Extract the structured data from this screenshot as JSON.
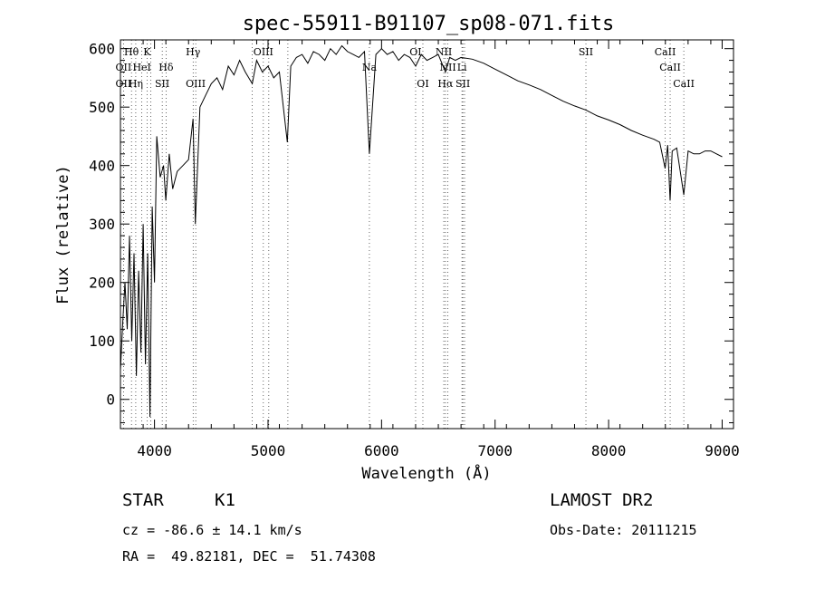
{
  "chart_data": {
    "type": "line",
    "title": "spec-55911-B91107_sp08-071.fits",
    "xlabel": "Wavelength (Å)",
    "ylabel": "Flux (relative)",
    "xlim": [
      3700,
      9100
    ],
    "ylim": [
      -50,
      615
    ],
    "xticks": [
      4000,
      5000,
      6000,
      7000,
      8000,
      9000
    ],
    "yticks": [
      0,
      100,
      200,
      300,
      400,
      500,
      600
    ],
    "grid": false,
    "series": [
      {
        "x": [
          3700,
          3720,
          3740,
          3760,
          3780,
          3800,
          3820,
          3840,
          3860,
          3880,
          3900,
          3920,
          3940,
          3960,
          3980,
          4000,
          4020,
          4050,
          4080,
          4100,
          4130,
          4160,
          4200,
          4250,
          4300,
          4340,
          4360,
          4400,
          4450,
          4500,
          4550,
          4600,
          4650,
          4700,
          4750,
          4800,
          4861,
          4900,
          4950,
          5000,
          5050,
          5100,
          5170,
          5200,
          5250,
          5300,
          5350,
          5400,
          5450,
          5500,
          5550,
          5600,
          5650,
          5700,
          5750,
          5800,
          5850,
          5893,
          5950,
          6000,
          6050,
          6100,
          6150,
          6200,
          6250,
          6300,
          6350,
          6400,
          6450,
          6500,
          6563,
          6600,
          6650,
          6700,
          6800,
          6900,
          7000,
          7100,
          7200,
          7300,
          7400,
          7500,
          7600,
          7700,
          7800,
          7900,
          8000,
          8100,
          8200,
          8300,
          8400,
          8450,
          8498,
          8520,
          8542,
          8560,
          8600,
          8662,
          8700,
          8750,
          8800,
          8850,
          8900,
          8950,
          9000
        ],
        "y": [
          50,
          130,
          200,
          120,
          280,
          100,
          250,
          40,
          220,
          80,
          300,
          60,
          250,
          -30,
          330,
          200,
          450,
          380,
          400,
          340,
          420,
          360,
          390,
          400,
          410,
          480,
          300,
          500,
          520,
          540,
          550,
          530,
          570,
          555,
          580,
          560,
          540,
          580,
          560,
          570,
          550,
          560,
          440,
          570,
          585,
          590,
          575,
          595,
          590,
          580,
          600,
          590,
          605,
          595,
          590,
          585,
          595,
          420,
          590,
          600,
          590,
          595,
          580,
          590,
          585,
          570,
          590,
          580,
          585,
          590,
          560,
          585,
          580,
          585,
          582,
          575,
          565,
          555,
          545,
          538,
          530,
          520,
          510,
          502,
          495,
          485,
          478,
          470,
          460,
          452,
          445,
          440,
          395,
          435,
          340,
          425,
          430,
          350,
          425,
          420,
          420,
          425,
          425,
          420,
          415
        ]
      }
    ],
    "line_labels": [
      {
        "text": "Hθ",
        "x": 3797,
        "row": 0
      },
      {
        "text": "K",
        "x": 3934,
        "row": 0
      },
      {
        "text": "Hγ",
        "x": 4340,
        "row": 0
      },
      {
        "text": "OIII",
        "x": 4959,
        "row": 0
      },
      {
        "text": "OI",
        "x": 6300,
        "row": 0
      },
      {
        "text": "NII",
        "x": 6548,
        "row": 0
      },
      {
        "text": "SII",
        "x": 7800,
        "row": 0
      },
      {
        "text": "CaII",
        "x": 8498,
        "row": 0
      },
      {
        "text": "OII",
        "x": 3727,
        "row": 1
      },
      {
        "text": "HeI",
        "x": 3889,
        "row": 1
      },
      {
        "text": "Hδ",
        "x": 4102,
        "row": 1
      },
      {
        "text": "Na",
        "x": 5893,
        "row": 1
      },
      {
        "text": "NII",
        "x": 6584,
        "row": 1
      },
      {
        "text": "Li",
        "x": 6708,
        "row": 1
      },
      {
        "text": "CaII",
        "x": 8542,
        "row": 1
      },
      {
        "text": "OII",
        "x": 3727,
        "row": 2
      },
      {
        "text": "Hη",
        "x": 3835,
        "row": 2
      },
      {
        "text": "SII",
        "x": 4068,
        "row": 2
      },
      {
        "text": "OIII",
        "x": 4363,
        "row": 2
      },
      {
        "text": "OI",
        "x": 6364,
        "row": 2
      },
      {
        "text": "Hα",
        "x": 6563,
        "row": 2
      },
      {
        "text": "SII",
        "x": 6716,
        "row": 2
      },
      {
        "text": "CaII",
        "x": 8662,
        "row": 2
      }
    ],
    "line_markers": [
      3727,
      3797,
      3835,
      3889,
      3934,
      3968,
      4068,
      4102,
      4340,
      4363,
      4861,
      4959,
      5007,
      5175,
      5893,
      6300,
      6364,
      6548,
      6563,
      6584,
      6708,
      6716,
      6731,
      7800,
      8498,
      8542,
      8662
    ]
  },
  "info": {
    "object_type": "STAR",
    "object_class": "K1",
    "survey": "LAMOST DR2",
    "cz": "cz = -86.6 ± 14.1 km/s",
    "obs_date": "Obs-Date: 20111215",
    "ra_dec": "RA =  49.82181, DEC =  51.74308"
  }
}
